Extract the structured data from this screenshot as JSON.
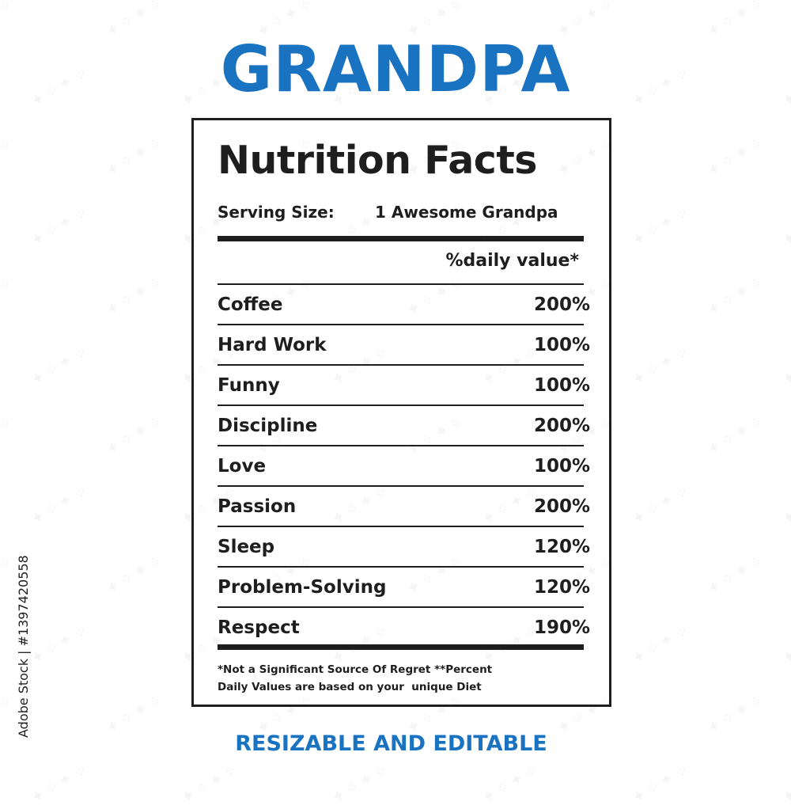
{
  "title": "GRANDPA",
  "label": {
    "heading": "Nutrition Facts",
    "serving_size_label": "Serving Size:",
    "serving_size_value": "1 Awesome Grandpa",
    "daily_value_header": "%daily value*",
    "rows": [
      {
        "name": "Coffee",
        "value": "200%"
      },
      {
        "name": "Hard Work",
        "value": "100%"
      },
      {
        "name": "Funny",
        "value": "100%"
      },
      {
        "name": "Discipline",
        "value": "200%"
      },
      {
        "name": "Love",
        "value": "100%"
      },
      {
        "name": "Passion",
        "value": "200%"
      },
      {
        "name": "Sleep",
        "value": "120%"
      },
      {
        "name": "Problem-Solving",
        "value": "120%"
      },
      {
        "name": "Respect",
        "value": "190%"
      }
    ],
    "footnote_line1": "*Not a Significant Source Of Regret **Percent",
    "footnote_line2": "Daily Values are based on your  unique Diet"
  },
  "subtitle": "RESIZABLE AND EDITABLE",
  "stock_id": "Adobe Stock | #1397420558",
  "colors": {
    "accent": "#1a73c0",
    "text": "#1e1e1e",
    "background": "#ffffff"
  }
}
